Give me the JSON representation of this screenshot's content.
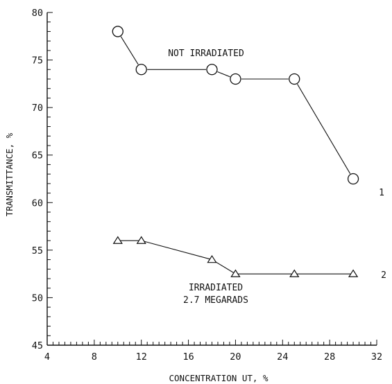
{
  "chart_data": {
    "type": "line",
    "xlabel": "CONCENTRATION UT, %",
    "ylabel": "TRANSMITTANCE, %",
    "xlim": [
      4,
      32
    ],
    "ylim": [
      45,
      80
    ],
    "xticks": [
      4,
      8,
      12,
      16,
      20,
      24,
      28,
      32
    ],
    "yticks": [
      45,
      50,
      55,
      60,
      65,
      70,
      75,
      80
    ],
    "grid": false,
    "series": [
      {
        "name": "1",
        "marker": "circle",
        "annotation": "NOT IRRADIATED",
        "x": [
          10,
          12,
          18,
          20,
          25,
          30
        ],
        "y": [
          78,
          74,
          74,
          73,
          73,
          62.5
        ]
      },
      {
        "name": "2",
        "marker": "triangle",
        "annotation": [
          "IRRADIATED",
          "2.7 MEGARADS"
        ],
        "x": [
          10,
          12,
          18,
          20,
          25,
          30
        ],
        "y": [
          56,
          56,
          54,
          52.5,
          52.5,
          52.5
        ]
      }
    ]
  },
  "colors": {
    "ink": "#111111",
    "background": "#ffffff"
  }
}
